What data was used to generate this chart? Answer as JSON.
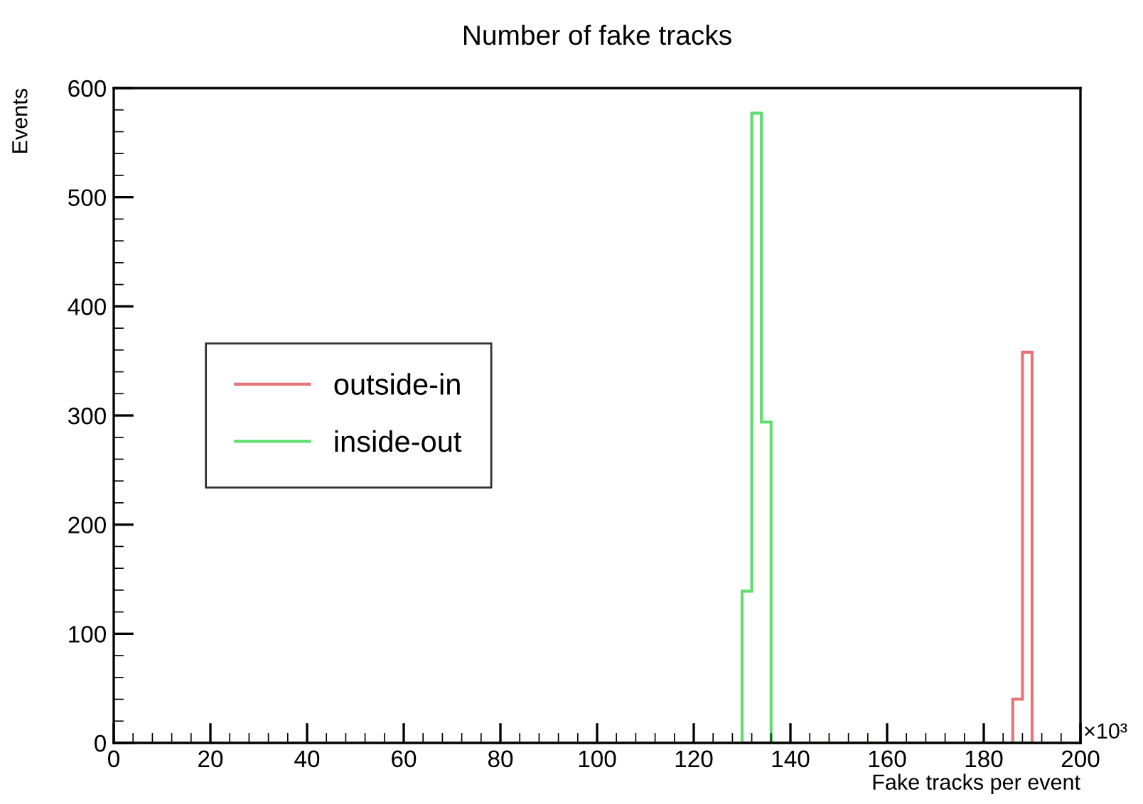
{
  "chart_data": {
    "type": "histogram",
    "title": "Number of fake tracks",
    "xlabel": "Fake tracks per event",
    "ylabel": "Events",
    "annotations": [
      "×10³"
    ],
    "bins": [
      130,
      132,
      134,
      136,
      138,
      140,
      142,
      144,
      146,
      148,
      150,
      152,
      154,
      156,
      158,
      160,
      162,
      164,
      166,
      168,
      170,
      172,
      174,
      176,
      178,
      180,
      182,
      184,
      186,
      188,
      190
    ],
    "series": [
      {
        "name": "outside-in",
        "color": "#e8737a",
        "values": [
          0,
          0,
          0,
          0,
          0,
          0,
          0,
          0,
          0,
          0,
          0,
          0,
          0,
          0,
          0,
          0,
          0,
          0,
          0,
          0,
          0,
          0,
          0,
          0,
          0,
          0,
          0,
          0,
          40,
          358
        ]
      },
      {
        "name": "inside-out",
        "color": "#5fde6e",
        "values": [
          139,
          577,
          294,
          0,
          0,
          0,
          0,
          0,
          0,
          0,
          0,
          0,
          0,
          0,
          0,
          0,
          0,
          0,
          0,
          0,
          0,
          0,
          0,
          0,
          0,
          0,
          0,
          0,
          0,
          0
        ]
      }
    ],
    "xlim": [
      0,
      200
    ],
    "xticks": [
      0,
      20,
      40,
      60,
      80,
      100,
      120,
      140,
      160,
      180,
      200
    ],
    "ylim": [
      0,
      600
    ],
    "yticks": [
      0,
      100,
      200,
      300,
      400,
      500,
      600
    ],
    "legend": "center left",
    "grid": false
  }
}
